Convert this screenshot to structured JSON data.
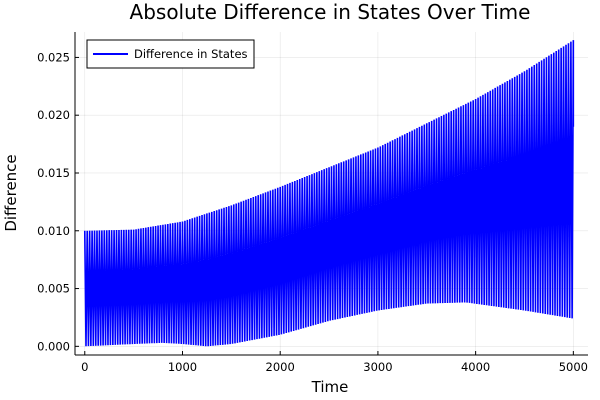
{
  "chart_data": {
    "type": "line",
    "title": "Absolute Difference in States Over Time",
    "xlabel": "Time",
    "ylabel": "Difference",
    "xlim": [
      -100,
      5150
    ],
    "ylim": [
      -0.00075,
      0.0272
    ],
    "x_ticks": [
      0,
      1000,
      2000,
      3000,
      4000,
      5000
    ],
    "x_tick_labels": [
      "0",
      "1000",
      "2000",
      "3000",
      "4000",
      "5000"
    ],
    "y_ticks": [
      0.0,
      0.005,
      0.01,
      0.015,
      0.02,
      0.025
    ],
    "y_tick_labels": [
      "0.000",
      "0.005",
      "0.010",
      "0.015",
      "0.020",
      "0.025"
    ],
    "grid": true,
    "legend_position": "top-left",
    "series": [
      {
        "name": "Difference in States",
        "color": "#0000ff",
        "x_range": [
          0,
          5000
        ],
        "oscillation_period": 25,
        "end_value": 0.019,
        "upper_envelope": [
          [
            0,
            0.01
          ],
          [
            500,
            0.0101
          ],
          [
            1000,
            0.0108
          ],
          [
            1500,
            0.0122
          ],
          [
            2000,
            0.0138
          ],
          [
            2500,
            0.0155
          ],
          [
            3000,
            0.0172
          ],
          [
            3500,
            0.0193
          ],
          [
            4000,
            0.0214
          ],
          [
            4500,
            0.0238
          ],
          [
            5000,
            0.0265
          ]
        ],
        "lower_envelope": [
          [
            0,
            0.0
          ],
          [
            500,
            0.0002
          ],
          [
            800,
            0.0003
          ],
          [
            1000,
            0.0002
          ],
          [
            1250,
            0.0
          ],
          [
            1500,
            0.0002
          ],
          [
            2000,
            0.001
          ],
          [
            2500,
            0.0022
          ],
          [
            3000,
            0.0031
          ],
          [
            3500,
            0.0037
          ],
          [
            3900,
            0.0038
          ],
          [
            4500,
            0.0031
          ],
          [
            5000,
            0.0024
          ]
        ]
      }
    ]
  }
}
